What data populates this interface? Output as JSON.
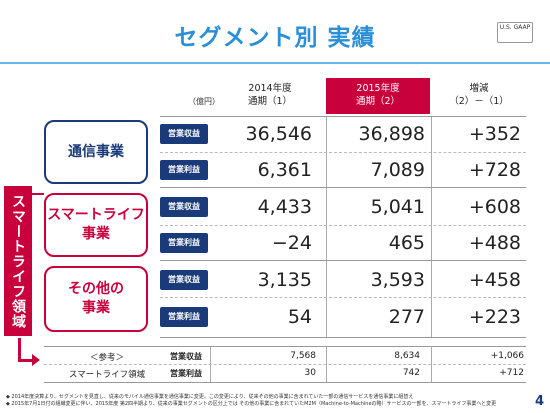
{
  "title": "セグメント別 実績",
  "gaap_badge": "U.S. GAAP",
  "unit": "（億円）",
  "columns": [
    {
      "line1": "2014年度",
      "line2": "通期（1）"
    },
    {
      "line1": "2015年度",
      "line2": "通期（2）"
    },
    {
      "line1": "増減",
      "line2": "（2）－（1）"
    }
  ],
  "badges": {
    "revenue": "営業収益",
    "profit": "営業利益"
  },
  "segments": [
    {
      "name_line1": "通信事業",
      "name_line2": "",
      "revenue": [
        "36,546",
        "36,898",
        "+352"
      ],
      "profit": [
        "6,361",
        "7,089",
        "+728"
      ]
    },
    {
      "name_line1": "スマートライフ",
      "name_line2": "事業",
      "revenue": [
        "4,433",
        "5,041",
        "+608"
      ],
      "profit": [
        "−24",
        "465",
        "+488"
      ]
    },
    {
      "name_line1": "その他の",
      "name_line2": "事業",
      "revenue": [
        "3,135",
        "3,593",
        "+458"
      ],
      "profit": [
        "54",
        "277",
        "+223"
      ]
    }
  ],
  "smart_life_label": "スマートライフ領域",
  "reference": {
    "label1": "＜参考＞",
    "label2": "スマートライフ領域",
    "revenue": [
      "7,568",
      "8,634",
      "+1,066"
    ],
    "profit": [
      "30",
      "742",
      "+712"
    ]
  },
  "notes": [
    "◆ 2014年度決算より、セグメントを見直し、従来のモバイル通信事業を通信事業に変更。この変更により、従来その他の事業に含まれていた一部の通信サービスを通信事業に組替え",
    "◆ 2015年7月1日付の組織変更に伴い、2015年度 第2四半期より、従来の事業セグメントの区分上では その他の事業に含まれていたM2M（Machine-to-Machineの略）サービスの一部を、スマートライフ事業へと変更"
  ],
  "page_number": "4",
  "colors": {
    "accent_blue": "#2a8fd6",
    "navy": "#1a3a7a",
    "red": "#c8003c"
  }
}
